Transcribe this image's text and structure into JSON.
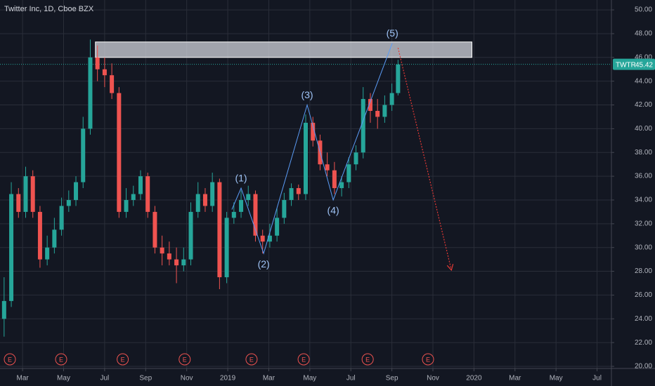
{
  "chart_data": {
    "type": "candlestick",
    "title": "Twitter Inc, 1D, Cboe BZX",
    "x": [
      0.1,
      0.45,
      0.8,
      1.15,
      1.5,
      1.85,
      2.2,
      2.55,
      2.9,
      3.25,
      3.6,
      3.95,
      4.3,
      4.65,
      5.0,
      5.35,
      5.7,
      6.05,
      6.4,
      6.75,
      7.1,
      7.45,
      7.8,
      8.15,
      8.5,
      8.85,
      9.2,
      9.55,
      9.9,
      10.25,
      10.6,
      10.95,
      11.3,
      11.65,
      12.0,
      12.35,
      12.7,
      13.05,
      13.4,
      13.75,
      14.1,
      14.45,
      14.8,
      15.15,
      15.5,
      15.85,
      16.2,
      16.55,
      16.9,
      17.25,
      17.6,
      17.95,
      18.3,
      18.65,
      19.0,
      19.3
    ],
    "open": [
      24,
      25.5,
      34.5,
      33,
      36,
      33,
      29,
      30,
      31.5,
      33.5,
      34,
      35.5,
      40,
      46,
      45,
      44.5,
      43,
      33,
      34,
      34.5,
      36,
      33,
      30,
      29.5,
      29,
      28.5,
      29,
      33,
      34.5,
      33.5,
      35.5,
      27.5,
      32.5,
      33,
      34,
      34.5,
      31,
      30.5,
      31,
      32.5,
      34,
      35,
      34.5,
      40.5,
      39,
      37,
      36.5,
      35,
      35.5,
      37,
      38,
      42.5,
      41.5,
      41,
      42,
      43
    ],
    "high": [
      27.5,
      35.5,
      35,
      36.8,
      36.5,
      33.5,
      31,
      32.5,
      34.2,
      34.8,
      36,
      41,
      47.5,
      47,
      46,
      45.5,
      43.5,
      35,
      35.2,
      36.5,
      36.3,
      33.5,
      31,
      30.5,
      30,
      30,
      33.8,
      35.5,
      35,
      36.3,
      35.8,
      33,
      33.8,
      34.8,
      35.2,
      34.8,
      31.5,
      32,
      33.3,
      34.6,
      35.4,
      35.3,
      41.2,
      41,
      39.5,
      38,
      37.2,
      36,
      37.6,
      38.6,
      43.5,
      43,
      42.5,
      42.8,
      43.8,
      45.8
    ],
    "low": [
      22.5,
      25,
      32.5,
      32.5,
      32.5,
      28.3,
      28.5,
      29.5,
      31,
      33,
      33.5,
      35,
      39.5,
      44,
      43.5,
      42.5,
      32.5,
      32.5,
      33.5,
      34,
      32.5,
      29.5,
      28.5,
      28.5,
      27,
      28,
      28.5,
      32.5,
      33,
      33,
      26.5,
      27,
      32,
      32.5,
      33.5,
      30.5,
      29.5,
      30,
      30.5,
      32,
      33.5,
      34,
      34,
      38.5,
      36.5,
      36,
      34.5,
      34.3,
      35,
      36.5,
      37.5,
      40.5,
      40,
      40.5,
      41.5,
      42.8
    ],
    "close": [
      25.5,
      34.5,
      33,
      36,
      33,
      29,
      30,
      31.5,
      33.5,
      34,
      35.5,
      40,
      46,
      45,
      44.5,
      43,
      33,
      34,
      34.5,
      36,
      33,
      30,
      29.5,
      29,
      28.5,
      29,
      33,
      34.5,
      33.5,
      35.5,
      27.5,
      32.5,
      33,
      34,
      34.5,
      31,
      30.5,
      31,
      32.5,
      34,
      35,
      34.5,
      40.5,
      39,
      37,
      36.5,
      35,
      35.5,
      37,
      38,
      42.5,
      41.5,
      41,
      42,
      43,
      45.4
    ],
    "up_color": "#26a69a",
    "down_color": "#ef5350",
    "xlim": [
      -0.1,
      29.7
    ],
    "ylim": [
      20,
      50.3
    ],
    "xticks": [
      {
        "value": 1,
        "label": "Mar"
      },
      {
        "value": 3,
        "label": "May"
      },
      {
        "value": 5,
        "label": "Jul"
      },
      {
        "value": 7,
        "label": "Sep"
      },
      {
        "value": 9,
        "label": "Nov"
      },
      {
        "value": 11,
        "label": "2019"
      },
      {
        "value": 13,
        "label": "Mar"
      },
      {
        "value": 15,
        "label": "May"
      },
      {
        "value": 17,
        "label": "Jul"
      },
      {
        "value": 19,
        "label": "Sep"
      },
      {
        "value": 21,
        "label": "Nov"
      },
      {
        "value": 23,
        "label": "2020"
      },
      {
        "value": 25,
        "label": "Mar"
      },
      {
        "value": 27,
        "label": "May"
      },
      {
        "value": 29,
        "label": "Jul"
      }
    ],
    "yticks": [
      {
        "value": 20,
        "label": "20.00"
      },
      {
        "value": 22,
        "label": "22.00"
      },
      {
        "value": 24,
        "label": "24.00"
      },
      {
        "value": 26,
        "label": "26.00"
      },
      {
        "value": 28,
        "label": "28.00"
      },
      {
        "value": 30,
        "label": "30.00"
      },
      {
        "value": 32,
        "label": "32.00"
      },
      {
        "value": 34,
        "label": "34.00"
      },
      {
        "value": 36,
        "label": "36.00"
      },
      {
        "value": 38,
        "label": "38.00"
      },
      {
        "value": 40,
        "label": "40.00"
      },
      {
        "value": 42,
        "label": "42.00"
      },
      {
        "value": 44,
        "label": "44.00"
      },
      {
        "value": 46,
        "label": "46.00"
      },
      {
        "value": 48,
        "label": "48.00"
      },
      {
        "value": 50,
        "label": "50.00"
      }
    ],
    "grid": true,
    "zone": {
      "x": [
        4.55,
        22.9
      ],
      "y": [
        46.0,
        47.3
      ],
      "color": "#d1d4dc"
    },
    "wave": {
      "x": [
        11.2,
        11.65,
        12.75,
        14.87,
        16.14,
        19.02
      ],
      "y": [
        33.2,
        35,
        29.5,
        42,
        34,
        47.2
      ],
      "labels": [
        null,
        "(1)",
        "(2)",
        "(3)",
        "(4)",
        "(5)"
      ],
      "color": "#5b9cf6"
    },
    "projection": {
      "x": [
        19.3,
        21.9
      ],
      "y": [
        46.8,
        28.1
      ],
      "color": "#e53935"
    },
    "last": {
      "symbol": "TWTR",
      "value": 45.42,
      "color": "#26a69a"
    },
    "events": {
      "label": "E",
      "x": [
        0.38,
        2.88,
        5.88,
        8.9,
        12.16,
        14.7,
        17.82,
        20.76
      ],
      "color": "#ef5350"
    }
  }
}
